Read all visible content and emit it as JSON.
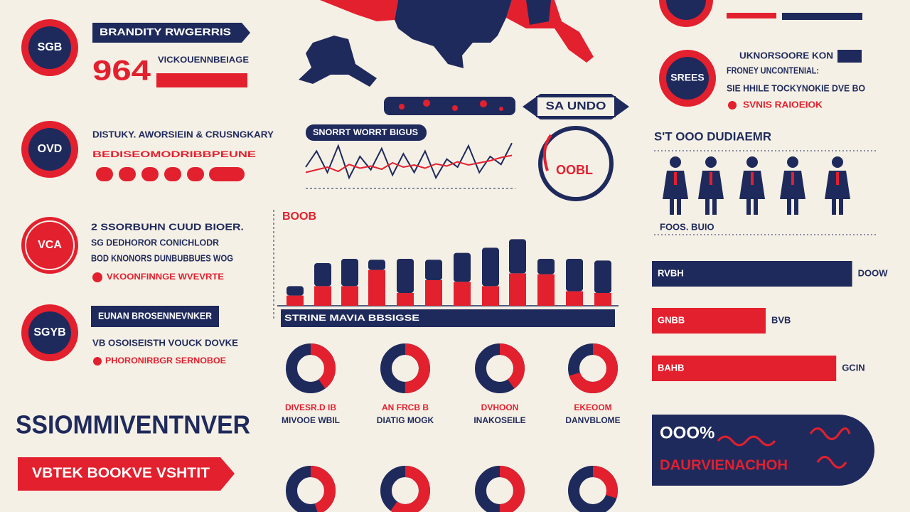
{
  "left": {
    "badges": [
      "SGB",
      "OVD",
      "VCA",
      "SGYB"
    ],
    "section_1": {
      "ribbon": "BRANDITY RWGERRIS",
      "number": "964",
      "caption": "VICKOUENNBEIAGE"
    },
    "section_2": {
      "heading": "DISTUKY. AWORSIEIN & CRUSNGKARY",
      "subheading": "BEDISEOMODRIBBPEUNE"
    },
    "section_3": {
      "lines": [
        "2 SSORBUHN CUUD BIOER.",
        "SG DEDHOROR CONICHLODR",
        "BOD KNONORS DUNBUBBUES WOG"
      ],
      "note": "VKOONFINNGE WVEVRTE"
    },
    "section_4": {
      "ribbon": "EUNAN BROSENNEVNKER",
      "line": "VB OSOISEISTH VOUCK DOVKE",
      "note": "PHORONIRBGR SERNOBOE"
    },
    "headline": "SSIOMMIVENTNVER",
    "banner": "VBTEK BOOKVE VSHTIT"
  },
  "center": {
    "line_chart": {
      "title": "SNORRT WORRT BIGUS",
      "ylim": [
        0,
        100
      ],
      "series": [
        {
          "color": "#1f2a5c",
          "values": [
            40,
            70,
            30,
            80,
            20,
            60,
            35,
            75,
            25,
            65,
            30,
            70,
            20,
            55,
            40,
            80,
            30,
            60,
            45,
            85
          ]
        },
        {
          "color": "#e3202e",
          "values": [
            30,
            35,
            40,
            32,
            45,
            38,
            42,
            36,
            48,
            40,
            44,
            38,
            46,
            42,
            50,
            44,
            48,
            52,
            58,
            62
          ]
        }
      ]
    },
    "badge": {
      "ribbon": "SA UNDO",
      "label": "OOBL"
    },
    "bar_chart": {
      "title": "BOOB",
      "ylim": [
        0,
        100
      ],
      "footer": "STRINE MAVIA BBSIGSE",
      "series": [
        {
          "color": "#e3202e",
          "values": [
            12,
            23,
            23,
            42,
            15,
            30,
            28,
            23,
            38,
            37,
            17,
            15
          ]
        },
        {
          "color": "#1f2a5c",
          "values": [
            11,
            27,
            32,
            12,
            40,
            24,
            34,
            45,
            40,
            18,
            38,
            38
          ]
        }
      ]
    },
    "donuts": [
      {
        "share": 40,
        "lines": [
          "DIVESR.D IB",
          "MIVOOE WBIL"
        ]
      },
      {
        "share": 50,
        "lines": [
          "AN FRCB B",
          "DIATIG MOGK"
        ]
      },
      {
        "share": 40,
        "lines": [
          "DVHOON",
          "INAKOSEILE"
        ]
      },
      {
        "share": 70,
        "lines": [
          "EKEOOM",
          "DANVBLOME"
        ]
      },
      {
        "share": 45
      },
      {
        "share": 60
      },
      {
        "share": 50
      },
      {
        "share": 30
      }
    ]
  },
  "right": {
    "badge": "SREES",
    "heading": "UKNORSOORE KON",
    "lines": [
      "FRONEY UNCONTENIAL:",
      "SIE HHILE TOCKYNOKIE DVE BO"
    ],
    "note": "SVNIS RAIOEIOK",
    "people_title": "S'T OOO DUDIAEMR",
    "people_caption": "FOOS. BUIO",
    "bars": [
      {
        "label": "RVBH",
        "value_text": "DOOW",
        "value": 88,
        "color": "#1f2a5c"
      },
      {
        "label": "GNBB",
        "value_text": "BVB",
        "value": 50,
        "color": "#e3202e"
      },
      {
        "label": "BAHB",
        "value_text": "GCIN",
        "value": 81,
        "color": "#e3202e"
      }
    ],
    "panel": {
      "title": "OOO%",
      "subtitle": "DAURVIENACHOH"
    }
  }
}
